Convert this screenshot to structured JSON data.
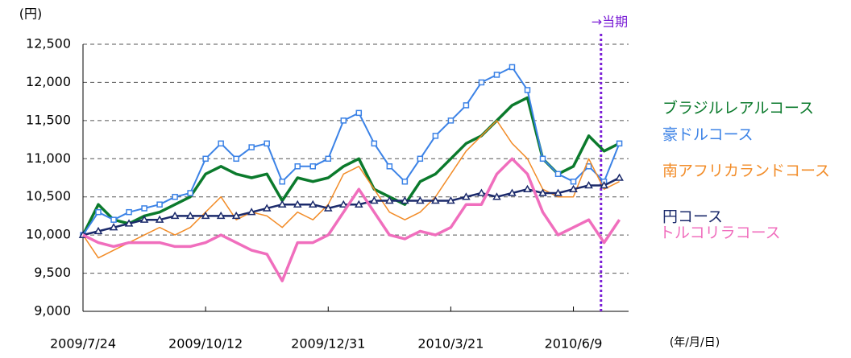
{
  "chart_data": {
    "type": "line",
    "y_label": "(円)",
    "x_label": "(年/月/日)",
    "x": [
      "2009/7/24",
      "2009/8/3",
      "2009/8/13",
      "2009/8/23",
      "2009/9/2",
      "2009/9/12",
      "2009/9/22",
      "2009/10/2",
      "2009/10/12",
      "2009/10/22",
      "2009/11/1",
      "2009/11/11",
      "2009/11/21",
      "2009/12/1",
      "2009/12/11",
      "2009/12/21",
      "2009/12/31",
      "2010/1/10",
      "2010/1/20",
      "2010/1/30",
      "2010/2/9",
      "2010/2/19",
      "2010/3/1",
      "2010/3/11",
      "2010/3/21",
      "2010/3/31",
      "2010/4/10",
      "2010/4/20",
      "2010/4/30",
      "2010/5/10",
      "2010/5/20",
      "2010/5/30",
      "2010/6/9",
      "2010/6/19",
      "2010/6/29",
      "2010/7/9"
    ],
    "xlim": [
      "2009/7/24",
      "2010/7/15"
    ],
    "xticks": [
      "2009/7/24",
      "2009/10/12",
      "2009/12/31",
      "2010/3/21",
      "2010/6/9"
    ],
    "ylim": [
      9000,
      12500
    ],
    "yticks": [
      {
        "value": 9000,
        "label": "9,000"
      },
      {
        "value": 9500,
        "label": "9,500"
      },
      {
        "value": 10000,
        "label": "10,000"
      },
      {
        "value": 10500,
        "label": "10,500"
      },
      {
        "value": 11000,
        "label": "11,000"
      },
      {
        "value": 11500,
        "label": "11,500"
      },
      {
        "value": 12000,
        "label": "12,000"
      },
      {
        "value": 12500,
        "label": "12,500"
      }
    ],
    "grid": true,
    "annotation": {
      "text": "→当期",
      "x": "2010/6/27",
      "color": "#7b1fd6"
    },
    "series": [
      {
        "name": "ブラジルレアルコース",
        "color": "#0b7a2c",
        "width": 3.5,
        "marker": "none",
        "values": [
          10000,
          10400,
          10200,
          10150,
          10250,
          10300,
          10400,
          10500,
          10800,
          10900,
          10800,
          10750,
          10800,
          10450,
          10750,
          10700,
          10750,
          10900,
          11000,
          10600,
          10500,
          10400,
          10700,
          10800,
          11000,
          11200,
          11300,
          11500,
          11700,
          11800,
          11000,
          10800,
          10900,
          11300,
          11100,
          11200
        ]
      },
      {
        "name": "豪ドルコース",
        "color": "#3b82e6",
        "width": 2,
        "marker": "square",
        "values": [
          10000,
          10300,
          10200,
          10300,
          10350,
          10400,
          10500,
          10550,
          11000,
          11200,
          11000,
          11150,
          11200,
          10700,
          10900,
          10900,
          11000,
          11500,
          11600,
          11200,
          10900,
          10700,
          11000,
          11300,
          11500,
          11700,
          12000,
          12100,
          12200,
          11900,
          11000,
          10800,
          10700,
          10900,
          10700,
          11200
        ]
      },
      {
        "name": "南アフリカランドコース",
        "color": "#f28c28",
        "width": 1.5,
        "marker": "none",
        "values": [
          10000,
          9700,
          9800,
          9900,
          10000,
          10100,
          10000,
          10100,
          10300,
          10500,
          10200,
          10300,
          10250,
          10100,
          10300,
          10200,
          10400,
          10800,
          10900,
          10600,
          10300,
          10200,
          10300,
          10500,
          10800,
          11100,
          11300,
          11500,
          11200,
          11000,
          10600,
          10500,
          10500,
          11000,
          10600,
          10700
        ]
      },
      {
        "name": "円コース",
        "color": "#1b2a6b",
        "width": 2.5,
        "marker": "triangle",
        "values": [
          10000,
          10050,
          10100,
          10150,
          10200,
          10200,
          10250,
          10250,
          10250,
          10250,
          10250,
          10300,
          10350,
          10400,
          10400,
          10400,
          10350,
          10400,
          10400,
          10450,
          10450,
          10450,
          10450,
          10450,
          10450,
          10500,
          10550,
          10500,
          10550,
          10600,
          10550,
          10550,
          10600,
          10650,
          10650,
          10750
        ]
      },
      {
        "name": "トルコリラコース",
        "color": "#f06ebd",
        "width": 3.5,
        "marker": "none",
        "values": [
          10000,
          9900,
          9850,
          9900,
          9900,
          9900,
          9850,
          9850,
          9900,
          10000,
          9900,
          9800,
          9750,
          9400,
          9900,
          9900,
          10000,
          10300,
          10600,
          10300,
          10000,
          9950,
          10050,
          10000,
          10100,
          10400,
          10400,
          10800,
          11000,
          10800,
          10300,
          10000,
          10100,
          10200,
          9900,
          10200
        ]
      }
    ]
  }
}
